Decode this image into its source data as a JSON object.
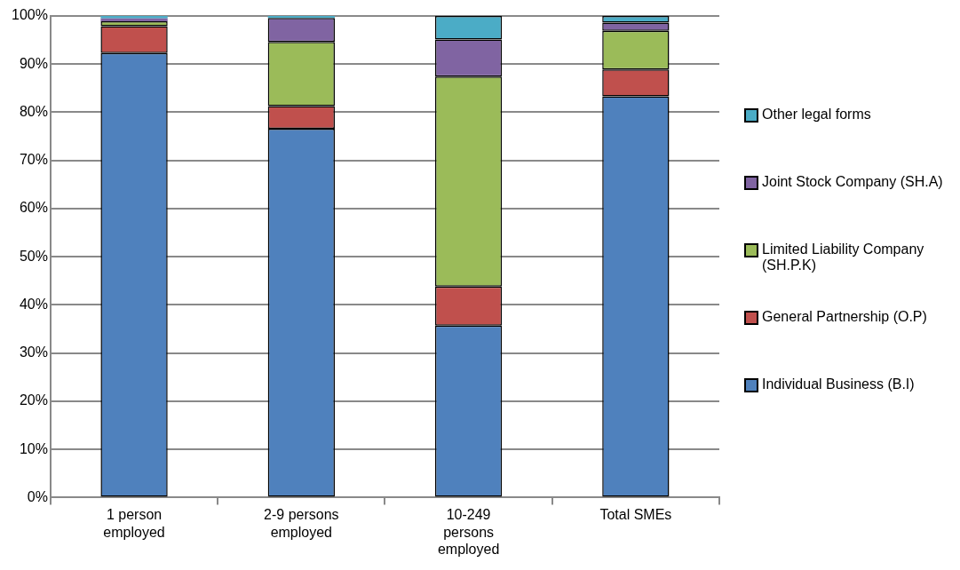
{
  "chart_data": {
    "type": "bar",
    "stacked": true,
    "categories": [
      "1 person employed",
      "2-9 persons employed",
      "10-249 persons employed",
      "Total SMEs"
    ],
    "series": [
      {
        "name": "Individual Business (B.I)",
        "color": "#4f81bd",
        "values": [
          92.3,
          76.6,
          35.7,
          83.3
        ]
      },
      {
        "name": "General Partnership (O.P)",
        "color": "#c0504d",
        "values": [
          5.6,
          4.7,
          8.1,
          5.6
        ]
      },
      {
        "name": "Limited Liability Company (SH.P.K)",
        "color": "#9bbb59",
        "values": [
          1.0,
          13.3,
          43.6,
          8.0
        ]
      },
      {
        "name": "Joint Stock Company (SH.A)",
        "color": "#8064a2",
        "values": [
          0.6,
          5.0,
          7.7,
          1.7
        ]
      },
      {
        "name": "Other legal forms",
        "color": "#4bacc6",
        "values": [
          0.5,
          0.4,
          4.9,
          1.4
        ]
      }
    ],
    "ylim": [
      0,
      100
    ],
    "yticks": [
      {
        "value": 0,
        "label": "0%"
      },
      {
        "value": 10,
        "label": "10%"
      },
      {
        "value": 20,
        "label": "20%"
      },
      {
        "value": 30,
        "label": "30%"
      },
      {
        "value": 40,
        "label": "40%"
      },
      {
        "value": 50,
        "label": "50%"
      },
      {
        "value": 60,
        "label": "60%"
      },
      {
        "value": 70,
        "label": "70%"
      },
      {
        "value": 80,
        "label": "80%"
      },
      {
        "value": 90,
        "label": "90%"
      },
      {
        "value": 100,
        "label": "100%"
      }
    ],
    "grid": "y",
    "legend": "right"
  }
}
